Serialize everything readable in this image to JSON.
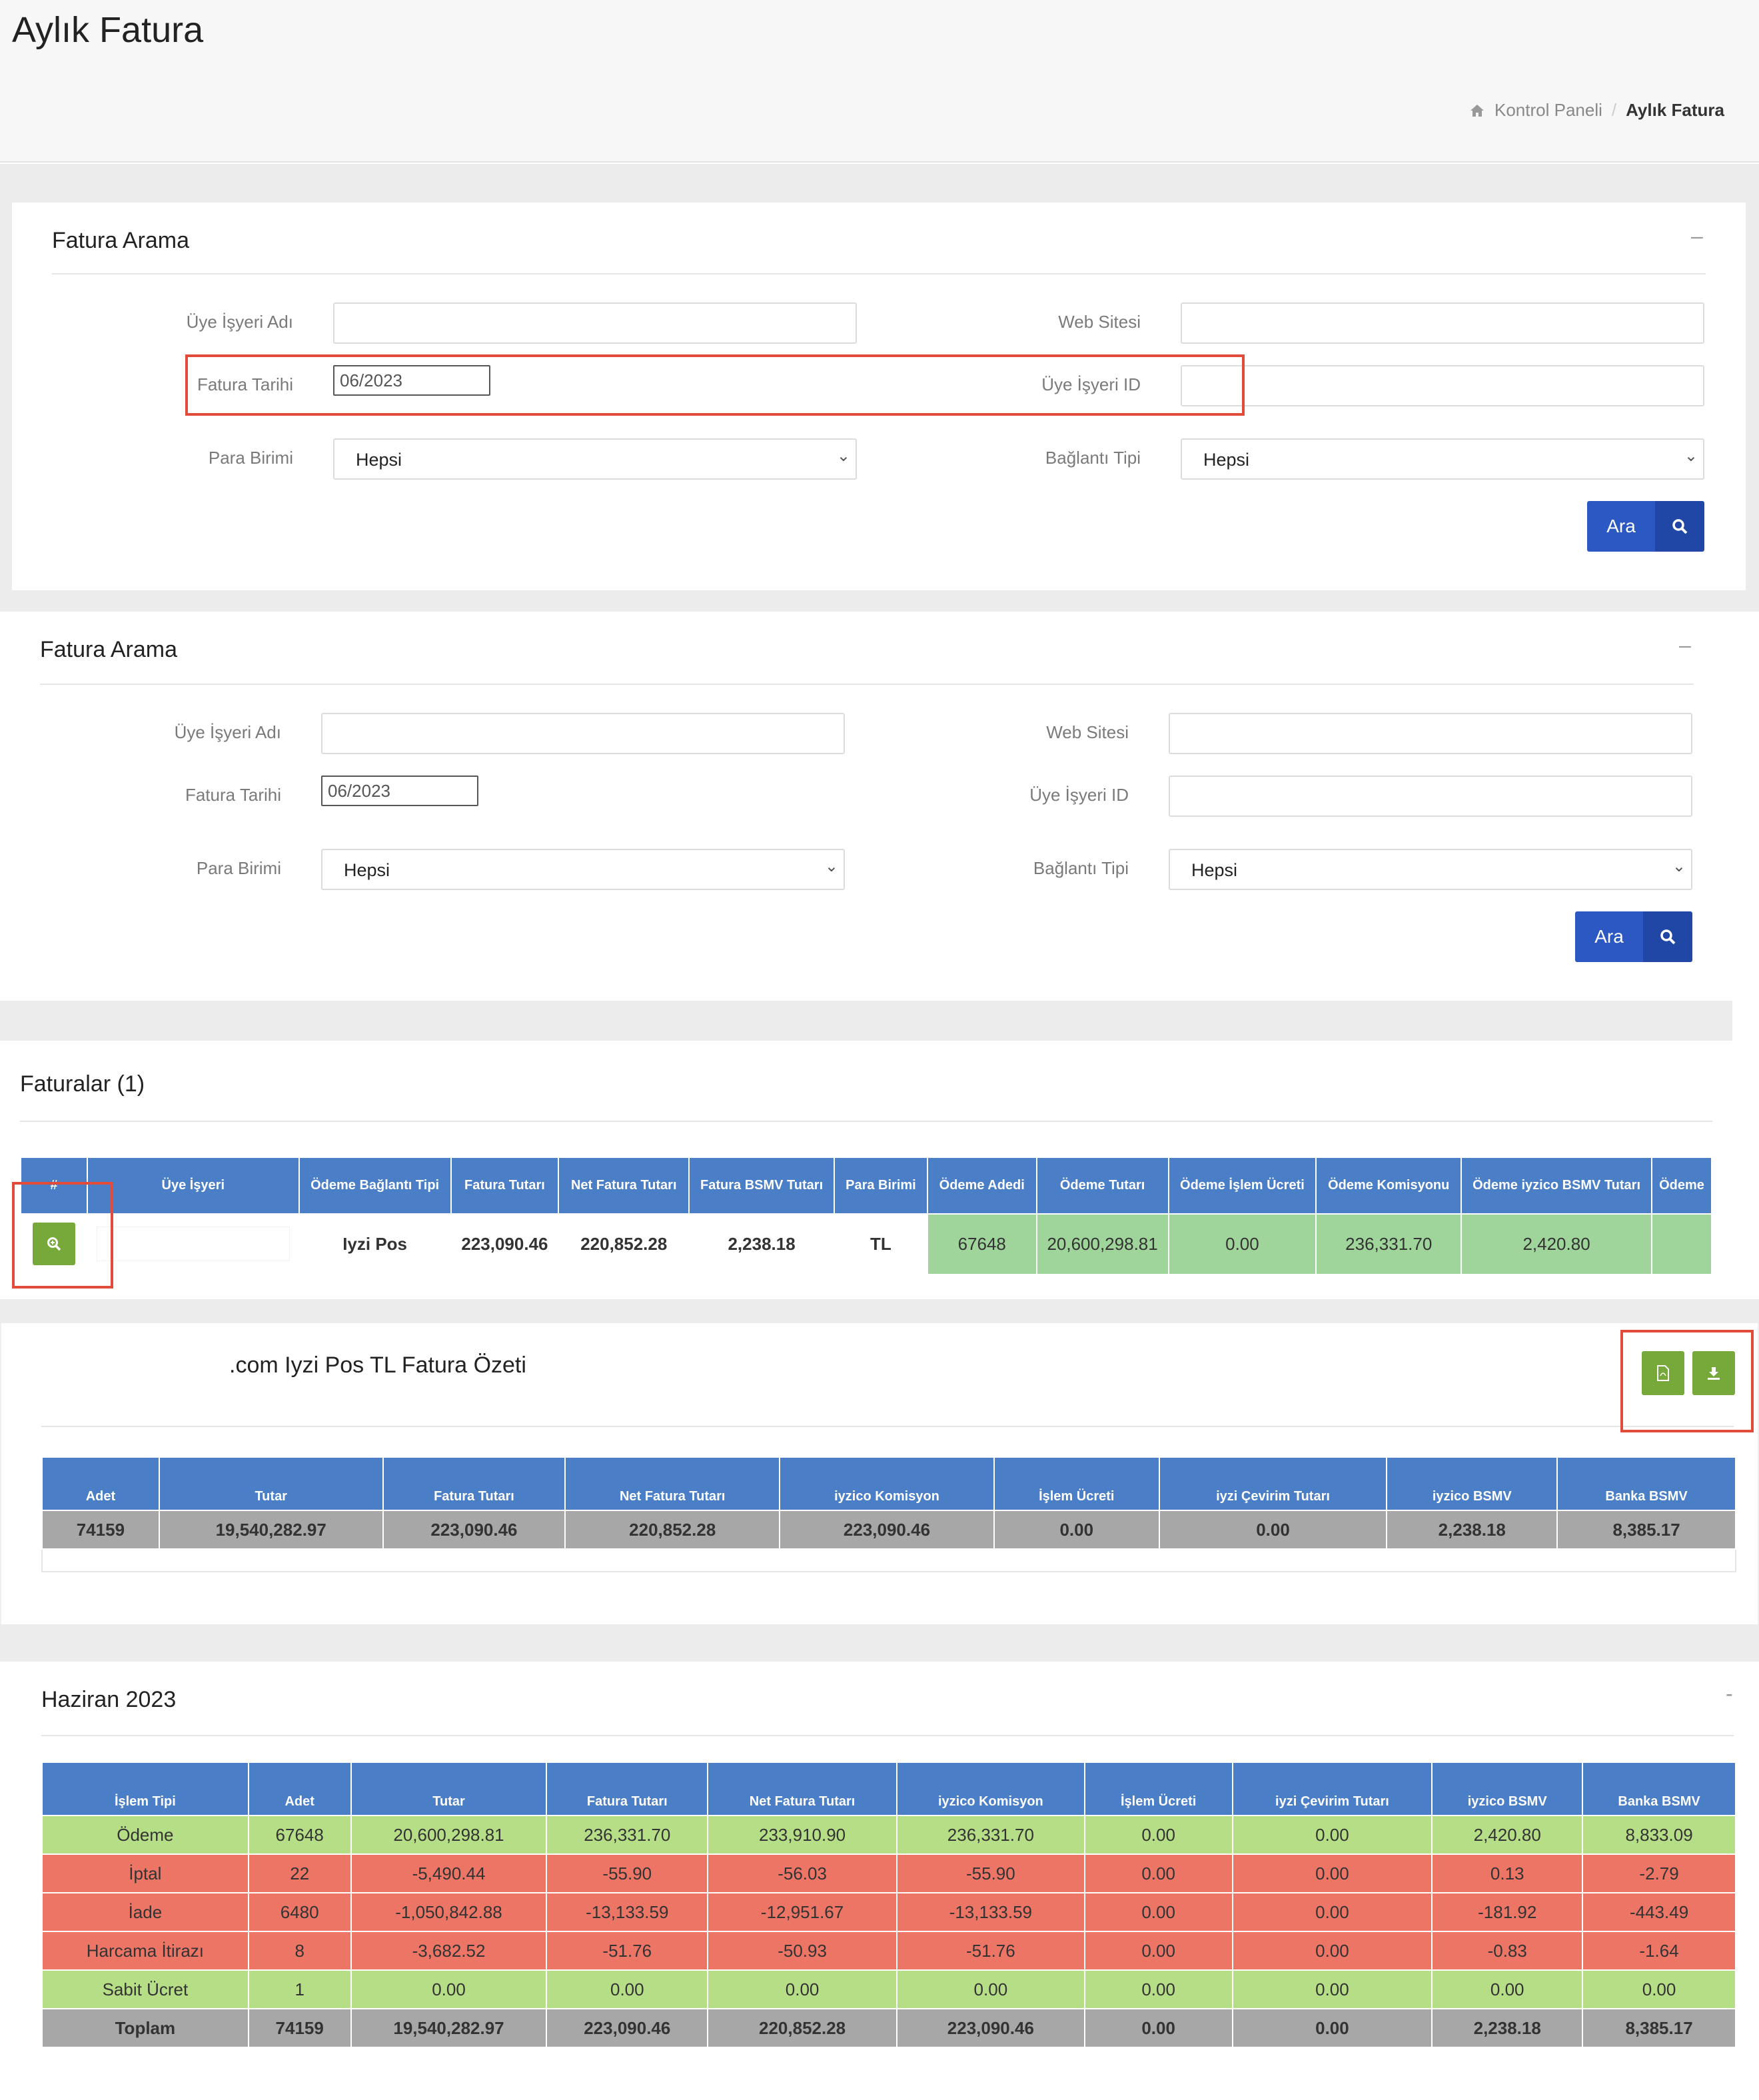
{
  "page": {
    "title": "Aylık Fatura"
  },
  "breadcrumb": {
    "home": "Kontrol Paneli",
    "sep": "/",
    "current": "Aylık Fatura"
  },
  "search": {
    "title": "Fatura Arama",
    "collapse": "–",
    "labels": {
      "merchant_name": "Üye İşyeri Adı",
      "website": "Web Sitesi",
      "invoice_date": "Fatura Tarihi",
      "merchant_id": "Üye İşyeri ID",
      "currency": "Para Birimi",
      "connection_type": "Bağlantı Tipi"
    },
    "invoice_date_value": "06/2023",
    "currency_value": "Hepsi",
    "connection_value": "Hepsi",
    "button": "Ara"
  },
  "invoices": {
    "title": "Faturalar (1)",
    "columns": [
      "#",
      "Üye İşyeri",
      "Ödeme Bağlantı Tipi",
      "Fatura Tutarı",
      "Net Fatura Tutarı",
      "Fatura BSMV Tutarı",
      "Para Birimi",
      "Ödeme Adedi",
      "Ödeme Tutarı",
      "Ödeme İşlem Ücreti",
      "Ödeme Komisyonu",
      "Ödeme iyzico BSMV Tutarı",
      "Ödeme"
    ],
    "row": [
      "",
      "",
      "Iyzi Pos",
      "223,090.46",
      "220,852.28",
      "2,238.18",
      "TL",
      "67648",
      "20,600,298.81",
      "0.00",
      "236,331.70",
      "2,420.80",
      ""
    ]
  },
  "summary": {
    "title": ".com Iyzi Pos TL Fatura Özeti",
    "columns": [
      "Adet",
      "Tutar",
      "Fatura Tutarı",
      "Net Fatura Tutarı",
      "iyzico Komisyon",
      "İşlem Ücreti",
      "iyzi Çevirim Tutarı",
      "iyzico BSMV",
      "Banka BSMV"
    ],
    "row": [
      "74159",
      "19,540,282.97",
      "223,090.46",
      "220,852.28",
      "223,090.46",
      "0.00",
      "0.00",
      "2,238.18",
      "8,385.17"
    ]
  },
  "monthly": {
    "title": "Haziran 2023",
    "collapse": "-",
    "columns": [
      "İşlem Tipi",
      "Adet",
      "Tutar",
      "Fatura Tutarı",
      "Net Fatura Tutarı",
      "iyzico Komisyon",
      "İşlem Ücreti",
      "iyzi Çevirim Tutarı",
      "iyzico BSMV",
      "Banka BSMV"
    ],
    "rows": [
      [
        "Ödeme",
        "67648",
        "20,600,298.81",
        "236,331.70",
        "233,910.90",
        "236,331.70",
        "0.00",
        "0.00",
        "2,420.80",
        "8,833.09"
      ],
      [
        "İptal",
        "22",
        "-5,490.44",
        "-55.90",
        "-56.03",
        "-55.90",
        "0.00",
        "0.00",
        "0.13",
        "-2.79"
      ],
      [
        "İade",
        "6480",
        "-1,050,842.88",
        "-13,133.59",
        "-12,951.67",
        "-13,133.59",
        "0.00",
        "0.00",
        "-181.92",
        "-443.49"
      ],
      [
        "Harcama İtirazı",
        "8",
        "-3,682.52",
        "-51.76",
        "-50.93",
        "-51.76",
        "0.00",
        "0.00",
        "-0.83",
        "-1.64"
      ],
      [
        "Sabit Ücret",
        "1",
        "0.00",
        "0.00",
        "0.00",
        "0.00",
        "0.00",
        "0.00",
        "0.00",
        "0.00"
      ],
      [
        "Toplam",
        "74159",
        "19,540,282.97",
        "223,090.46",
        "220,852.28",
        "223,090.46",
        "0.00",
        "0.00",
        "2,238.18",
        "8,385.17"
      ]
    ]
  },
  "colors": {
    "header_blue": "#4a7ec6",
    "button_blue": "#2b58c2",
    "green_row": "#b6de86",
    "red_row": "#ec7566",
    "total_row": "#a7a7a7",
    "annotation_red": "#e04b3a"
  }
}
